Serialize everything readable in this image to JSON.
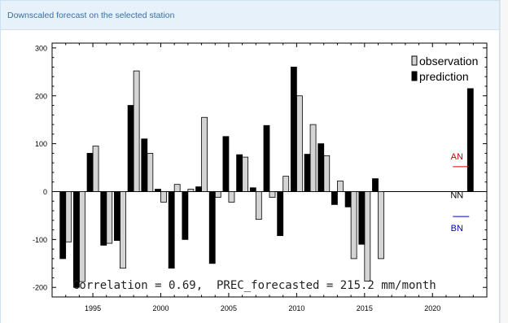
{
  "panel": {
    "title": "Downscaled forecast on the selected station"
  },
  "chart_data": {
    "type": "bar",
    "title": "",
    "xlabel": "",
    "ylabel": "",
    "xlim": [
      1992,
      2024
    ],
    "ylim": [
      -220,
      310
    ],
    "x_ticks": [
      1995,
      2000,
      2005,
      2010,
      2015,
      2020
    ],
    "y_ticks": [
      -200,
      -100,
      0,
      100,
      200,
      300
    ],
    "grid": false,
    "legend_position": "top-right",
    "series": [
      {
        "name": "observation",
        "color": "#d4d4d4",
        "points": [
          [
            1993,
            -105
          ],
          [
            1994,
            -188
          ],
          [
            1995,
            95
          ],
          [
            1996,
            -108
          ],
          [
            1997,
            -160
          ],
          [
            1998,
            252
          ],
          [
            1999,
            80
          ],
          [
            2000,
            -22
          ],
          [
            2001,
            15
          ],
          [
            2002,
            5
          ],
          [
            2003,
            155
          ],
          [
            2004,
            -12
          ],
          [
            2005,
            -22
          ],
          [
            2006,
            72
          ],
          [
            2007,
            -58
          ],
          [
            2008,
            -12
          ],
          [
            2009,
            32
          ],
          [
            2010,
            200
          ],
          [
            2011,
            140
          ],
          [
            2012,
            75
          ],
          [
            2013,
            22
          ],
          [
            2014,
            -140
          ],
          [
            2015,
            -187
          ],
          [
            2016,
            -140
          ]
        ]
      },
      {
        "name": "prediction",
        "color": "#000000",
        "points": [
          [
            1993,
            -140
          ],
          [
            1994,
            -200
          ],
          [
            1995,
            80
          ],
          [
            1996,
            -112
          ],
          [
            1997,
            -102
          ],
          [
            1998,
            180
          ],
          [
            1999,
            110
          ],
          [
            2000,
            5
          ],
          [
            2001,
            -160
          ],
          [
            2002,
            -100
          ],
          [
            2003,
            10
          ],
          [
            2004,
            -150
          ],
          [
            2005,
            115
          ],
          [
            2006,
            77
          ],
          [
            2007,
            8
          ],
          [
            2008,
            138
          ],
          [
            2009,
            -92
          ],
          [
            2010,
            260
          ],
          [
            2011,
            78
          ],
          [
            2012,
            100
          ],
          [
            2013,
            -27
          ],
          [
            2014,
            -32
          ],
          [
            2015,
            -110
          ],
          [
            2016,
            27
          ],
          [
            2023,
            215
          ]
        ]
      }
    ],
    "thresholds": [
      {
        "label": "AN",
        "value": 52,
        "color": "#cc0000"
      },
      {
        "label": "NN",
        "value": 0,
        "color": "#000000"
      },
      {
        "label": "BN",
        "value": -52,
        "color": "#0000cc"
      }
    ],
    "annotation": "Correlation = 0.69,  PREC_forecasted = 215.2 mm/month"
  }
}
